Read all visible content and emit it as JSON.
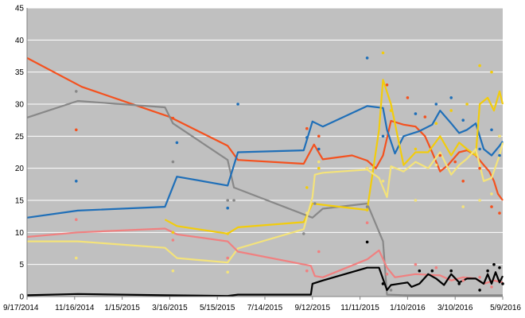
{
  "chart_data": {
    "type": "line",
    "title": "",
    "xlabel": "",
    "ylabel": "",
    "background_color": "#c0c0c0",
    "grid": "horizontal",
    "gridline_color": "#ffffff",
    "legend": "none",
    "xlim": [
      "2014-09-17",
      "2016-05-09"
    ],
    "ylim": [
      0,
      45
    ],
    "x_ticks": [
      "9/17/2014",
      "11/16/2014",
      "1/15/2015",
      "3/16/2015",
      "5/15/2015",
      "7/14/2015",
      "9/12/2015",
      "11/11/2015",
      "1/10/2016",
      "3/10/2016",
      "5/9/2016"
    ],
    "y_ticks": [
      0,
      5,
      10,
      15,
      20,
      25,
      30,
      35,
      40,
      45
    ],
    "series": [
      {
        "color": "#f4511e",
        "line": [
          [
            "2014-09-17",
            37.2
          ],
          [
            "2014-11-25",
            32.7
          ],
          [
            "2015-03-16",
            28.0
          ],
          [
            "2015-05-28",
            23.5
          ],
          [
            "2015-06-10",
            21.3
          ],
          [
            "2015-09-01",
            20.7
          ],
          [
            "2015-09-14",
            23.7
          ],
          [
            "2015-09-25",
            21.4
          ],
          [
            "2015-11-01",
            22.0
          ],
          [
            "2015-11-20",
            21.2
          ],
          [
            "2015-12-01",
            20.0
          ],
          [
            "2015-12-10",
            22.0
          ],
          [
            "2015-12-20",
            27.4
          ],
          [
            "2016-01-05",
            26.8
          ],
          [
            "2016-01-20",
            26.5
          ],
          [
            "2016-02-01",
            25.0
          ],
          [
            "2016-02-10",
            22.5
          ],
          [
            "2016-02-20",
            19.5
          ],
          [
            "2016-03-01",
            20.5
          ],
          [
            "2016-03-15",
            22.5
          ],
          [
            "2016-03-25",
            22.8
          ],
          [
            "2016-04-05",
            22.0
          ],
          [
            "2016-04-15",
            20.5
          ],
          [
            "2016-04-22",
            19.5
          ],
          [
            "2016-04-28",
            18.0
          ],
          [
            "2016-05-03",
            16.0
          ],
          [
            "2016-05-09",
            15.0
          ]
        ],
        "points": [
          [
            "2014-11-18",
            26.0
          ],
          [
            "2015-03-20",
            27.8
          ],
          [
            "2015-09-05",
            26.2
          ],
          [
            "2015-09-20",
            25.0
          ],
          [
            "2015-11-20",
            20.0
          ],
          [
            "2015-12-15",
            33.0
          ],
          [
            "2016-01-10",
            31.0
          ],
          [
            "2016-02-01",
            28.0
          ],
          [
            "2016-02-20",
            22.0
          ],
          [
            "2016-03-10",
            21.0
          ],
          [
            "2016-03-20",
            18.0
          ],
          [
            "2016-04-10",
            20.0
          ],
          [
            "2016-04-25",
            14.0
          ],
          [
            "2016-05-05",
            13.0
          ]
        ]
      },
      {
        "color": "#888888",
        "line": [
          [
            "2014-09-17",
            27.9
          ],
          [
            "2014-11-20",
            30.5
          ],
          [
            "2015-03-10",
            29.5
          ],
          [
            "2015-03-20",
            27.0
          ],
          [
            "2015-05-28",
            21.3
          ],
          [
            "2015-06-05",
            17.0
          ],
          [
            "2015-09-12",
            12.3
          ],
          [
            "2015-09-25",
            13.7
          ],
          [
            "2015-11-20",
            14.5
          ],
          [
            "2015-12-10",
            8.6
          ],
          [
            "2015-12-15",
            0.3
          ],
          [
            "2016-01-10",
            0.2
          ],
          [
            "2016-05-09",
            0.2
          ]
        ],
        "points": [
          [
            "2014-11-18",
            32.0
          ],
          [
            "2015-03-20",
            21.0
          ],
          [
            "2015-05-28",
            15.0
          ],
          [
            "2015-06-05",
            15.0
          ],
          [
            "2015-09-01",
            9.8
          ],
          [
            "2015-09-15",
            14.5
          ],
          [
            "2015-11-20",
            14.0
          ],
          [
            "2015-12-10",
            2.0
          ],
          [
            "2015-12-20",
            1.0
          ]
        ]
      },
      {
        "color": "#1f6fb8",
        "line": [
          [
            "2014-09-17",
            12.3
          ],
          [
            "2014-11-20",
            13.4
          ],
          [
            "2015-03-10",
            14.0
          ],
          [
            "2015-03-25",
            18.7
          ],
          [
            "2015-05-28",
            17.3
          ],
          [
            "2015-06-10",
            22.5
          ],
          [
            "2015-09-01",
            22.8
          ],
          [
            "2015-09-12",
            27.3
          ],
          [
            "2015-09-25",
            26.5
          ],
          [
            "2015-11-20",
            29.7
          ],
          [
            "2015-12-10",
            29.4
          ],
          [
            "2015-12-15",
            26.0
          ],
          [
            "2015-12-25",
            22.3
          ],
          [
            "2016-01-05",
            25.0
          ],
          [
            "2016-01-25",
            25.8
          ],
          [
            "2016-02-10",
            26.8
          ],
          [
            "2016-02-20",
            29.0
          ],
          [
            "2016-03-05",
            27.0
          ],
          [
            "2016-03-15",
            25.5
          ],
          [
            "2016-03-25",
            26.0
          ],
          [
            "2016-04-05",
            27.0
          ],
          [
            "2016-04-15",
            23.0
          ],
          [
            "2016-04-25",
            22.0
          ],
          [
            "2016-05-05",
            23.5
          ],
          [
            "2016-05-09",
            24.2
          ]
        ],
        "points": [
          [
            "2014-11-18",
            18.0
          ],
          [
            "2015-03-25",
            24.0
          ],
          [
            "2015-05-28",
            13.8
          ],
          [
            "2015-06-10",
            30.0
          ],
          [
            "2015-09-05",
            24.8
          ],
          [
            "2015-09-20",
            23.0
          ],
          [
            "2015-11-20",
            37.2
          ],
          [
            "2015-12-10",
            25.0
          ],
          [
            "2016-01-20",
            28.5
          ],
          [
            "2016-02-15",
            30.0
          ],
          [
            "2016-03-05",
            31.0
          ],
          [
            "2016-03-20",
            27.5
          ],
          [
            "2016-04-10",
            23.0
          ],
          [
            "2016-04-25",
            26.0
          ],
          [
            "2016-05-05",
            22.0
          ]
        ]
      },
      {
        "color": "#f2cc0c",
        "line": [
          [
            "2015-03-10",
            12.0
          ],
          [
            "2015-03-25",
            11.0
          ],
          [
            "2015-05-28",
            9.8
          ],
          [
            "2015-06-10",
            10.8
          ],
          [
            "2015-09-01",
            11.6
          ],
          [
            "2015-09-12",
            14.5
          ],
          [
            "2015-09-25",
            14.3
          ],
          [
            "2015-11-20",
            13.5
          ],
          [
            "2015-12-05",
            26.0
          ],
          [
            "2015-12-10",
            33.8
          ],
          [
            "2015-12-20",
            30.0
          ],
          [
            "2016-01-05",
            20.5
          ],
          [
            "2016-01-20",
            22.5
          ],
          [
            "2016-02-05",
            22.5
          ],
          [
            "2016-02-20",
            25.0
          ],
          [
            "2016-03-05",
            22.0
          ],
          [
            "2016-03-15",
            24.0
          ],
          [
            "2016-03-25",
            23.0
          ],
          [
            "2016-04-05",
            22.0
          ],
          [
            "2016-04-10",
            30.0
          ],
          [
            "2016-04-20",
            31.0
          ],
          [
            "2016-04-28",
            29.0
          ],
          [
            "2016-05-05",
            32.0
          ],
          [
            "2016-05-09",
            30.0
          ]
        ],
        "points": [
          [
            "2015-03-20",
            10.0
          ],
          [
            "2015-05-28",
            9.8
          ],
          [
            "2015-09-05",
            17.0
          ],
          [
            "2015-09-20",
            20.0
          ],
          [
            "2015-11-20",
            13.5
          ],
          [
            "2015-12-10",
            38.0
          ],
          [
            "2015-12-20",
            29.0
          ],
          [
            "2016-01-20",
            23.0
          ],
          [
            "2016-02-15",
            27.0
          ],
          [
            "2016-03-05",
            29.0
          ],
          [
            "2016-03-25",
            30.0
          ],
          [
            "2016-04-10",
            36.0
          ],
          [
            "2016-04-25",
            35.0
          ],
          [
            "2016-05-05",
            25.0
          ]
        ]
      },
      {
        "color": "#f4e37a",
        "line": [
          [
            "2014-09-17",
            8.6
          ],
          [
            "2014-11-20",
            8.6
          ],
          [
            "2015-03-10",
            7.6
          ],
          [
            "2015-03-25",
            6.0
          ],
          [
            "2015-05-28",
            5.3
          ],
          [
            "2015-06-10",
            7.5
          ],
          [
            "2015-09-01",
            10.5
          ],
          [
            "2015-09-12",
            15.5
          ],
          [
            "2015-09-15",
            19.0
          ],
          [
            "2015-09-25",
            19.3
          ],
          [
            "2015-11-20",
            19.8
          ],
          [
            "2015-12-05",
            18.5
          ],
          [
            "2015-12-15",
            15.5
          ],
          [
            "2015-12-20",
            20.3
          ],
          [
            "2016-01-05",
            19.5
          ],
          [
            "2016-01-20",
            21.0
          ],
          [
            "2016-02-05",
            20.0
          ],
          [
            "2016-02-20",
            22.5
          ],
          [
            "2016-03-05",
            19.0
          ],
          [
            "2016-03-15",
            20.5
          ],
          [
            "2016-03-25",
            21.5
          ],
          [
            "2016-04-05",
            23.0
          ],
          [
            "2016-04-15",
            18.0
          ],
          [
            "2016-04-25",
            18.5
          ],
          [
            "2016-05-05",
            22.0
          ],
          [
            "2016-05-09",
            24.0
          ]
        ],
        "points": [
          [
            "2014-11-18",
            6.0
          ],
          [
            "2015-03-20",
            4.0
          ],
          [
            "2015-05-28",
            3.8
          ],
          [
            "2015-09-05",
            13.0
          ],
          [
            "2015-09-20",
            21.0
          ],
          [
            "2015-11-20",
            20.0
          ],
          [
            "2015-12-10",
            18.0
          ],
          [
            "2016-01-20",
            15.0
          ],
          [
            "2016-02-15",
            20.5
          ],
          [
            "2016-03-20",
            14.0
          ],
          [
            "2016-04-10",
            15.0
          ],
          [
            "2016-04-25",
            16.0
          ],
          [
            "2016-05-05",
            25.0
          ]
        ]
      },
      {
        "color": "#f08080",
        "line": [
          [
            "2014-09-17",
            9.3
          ],
          [
            "2014-11-20",
            10.0
          ],
          [
            "2015-03-10",
            10.6
          ],
          [
            "2015-03-25",
            9.7
          ],
          [
            "2015-05-28",
            8.6
          ],
          [
            "2015-06-10",
            7.0
          ],
          [
            "2015-09-10",
            4.8
          ],
          [
            "2015-09-15",
            3.2
          ],
          [
            "2015-09-25",
            3.0
          ],
          [
            "2015-11-20",
            5.8
          ],
          [
            "2015-12-05",
            7.2
          ],
          [
            "2015-12-15",
            4.5
          ],
          [
            "2015-12-25",
            3.0
          ],
          [
            "2016-01-20",
            3.5
          ],
          [
            "2016-02-20",
            3.3
          ],
          [
            "2016-03-05",
            2.5
          ],
          [
            "2016-03-20",
            3.0
          ],
          [
            "2016-04-05",
            2.8
          ],
          [
            "2016-04-15",
            2.0
          ],
          [
            "2016-04-28",
            2.5
          ],
          [
            "2016-05-09",
            2.2
          ]
        ],
        "points": [
          [
            "2014-11-18",
            12.0
          ],
          [
            "2015-03-20",
            8.8
          ],
          [
            "2015-05-28",
            6.0
          ],
          [
            "2015-09-05",
            4.0
          ],
          [
            "2015-09-20",
            7.0
          ],
          [
            "2015-11-20",
            11.5
          ],
          [
            "2015-12-15",
            3.5
          ],
          [
            "2016-01-20",
            5.0
          ],
          [
            "2016-02-15",
            4.5
          ],
          [
            "2016-03-20",
            2.5
          ],
          [
            "2016-04-10",
            3.0
          ],
          [
            "2016-04-25",
            1.5
          ]
        ]
      },
      {
        "color": "#000000",
        "line": [
          [
            "2014-09-17",
            0.2
          ],
          [
            "2014-11-20",
            0.4
          ],
          [
            "2015-03-10",
            0.2
          ],
          [
            "2015-05-28",
            0.1
          ],
          [
            "2015-06-10",
            0.3
          ],
          [
            "2015-09-10",
            0.3
          ],
          [
            "2015-09-12",
            2.0
          ],
          [
            "2015-09-25",
            2.5
          ],
          [
            "2015-11-20",
            4.5
          ],
          [
            "2015-12-05",
            4.5
          ],
          [
            "2015-12-15",
            1.0
          ],
          [
            "2015-12-20",
            1.8
          ],
          [
            "2016-01-10",
            2.2
          ],
          [
            "2016-01-15",
            1.5
          ],
          [
            "2016-01-25",
            2.0
          ],
          [
            "2016-02-05",
            3.5
          ],
          [
            "2016-02-15",
            2.8
          ],
          [
            "2016-02-25",
            1.8
          ],
          [
            "2016-03-05",
            3.5
          ],
          [
            "2016-03-15",
            2.2
          ],
          [
            "2016-03-25",
            2.8
          ],
          [
            "2016-04-05",
            2.8
          ],
          [
            "2016-04-15",
            2.0
          ],
          [
            "2016-04-20",
            3.5
          ],
          [
            "2016-04-25",
            2.0
          ],
          [
            "2016-04-30",
            3.8
          ],
          [
            "2016-05-05",
            2.2
          ],
          [
            "2016-05-09",
            3.2
          ]
        ],
        "points": [
          [
            "2015-11-20",
            8.5
          ],
          [
            "2015-12-10",
            2.0
          ],
          [
            "2016-01-25",
            4.0
          ],
          [
            "2016-02-10",
            4.0
          ],
          [
            "2016-03-05",
            4.0
          ],
          [
            "2016-03-15",
            2.0
          ],
          [
            "2016-04-10",
            1.0
          ],
          [
            "2016-04-20",
            4.0
          ],
          [
            "2016-04-28",
            5.0
          ],
          [
            "2016-05-05",
            4.5
          ],
          [
            "2016-05-09",
            2.0
          ]
        ]
      }
    ]
  }
}
